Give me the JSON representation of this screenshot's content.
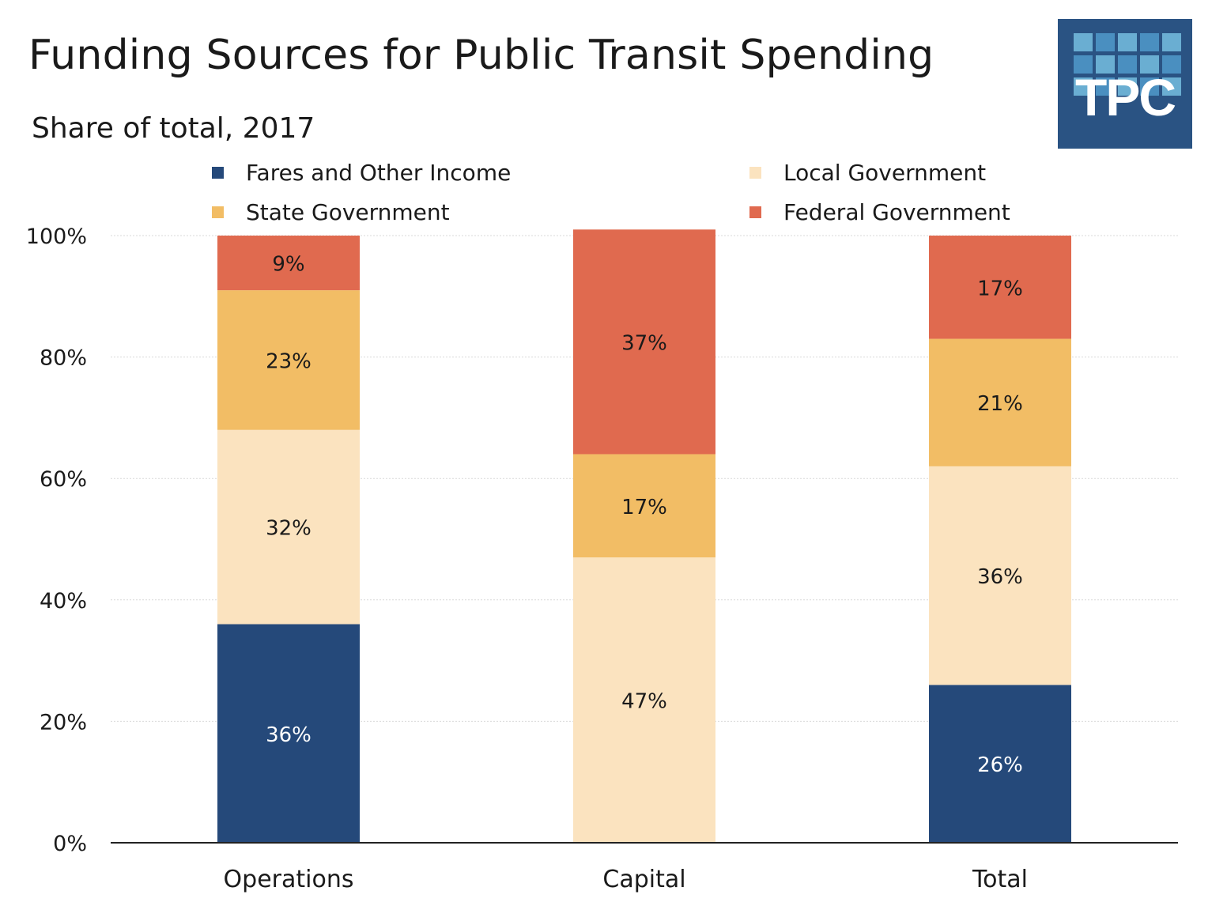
{
  "title": "Funding Sources for Public Transit Spending",
  "subtitle": "Share of total, 2017",
  "logo": {
    "text": "TPC",
    "colors": {
      "background": "#2a5383",
      "tile_light": "#6aaed2",
      "tile_mid": "#4a8fc0"
    }
  },
  "legend": [
    {
      "label": "Fares and Other Income",
      "color": "#25497a"
    },
    {
      "label": "Local Government",
      "color": "#fbe3bf"
    },
    {
      "label": "State Government",
      "color": "#f2bd65"
    },
    {
      "label": "Federal Government",
      "color": "#e06a4f"
    }
  ],
  "chart_data": {
    "type": "bar",
    "stacked": true,
    "categories": [
      "Operations",
      "Capital",
      "Total"
    ],
    "series": [
      {
        "name": "Fares and Other Income",
        "color": "#25497a",
        "values": [
          36,
          0,
          26
        ],
        "labels": [
          "36%",
          "",
          "26%"
        ]
      },
      {
        "name": "Local Government",
        "color": "#fbe3bf",
        "values": [
          32,
          47,
          36
        ],
        "labels": [
          "32%",
          "47%",
          "36%"
        ]
      },
      {
        "name": "State Government",
        "color": "#f2bd65",
        "values": [
          23,
          17,
          21
        ],
        "labels": [
          "23%",
          "17%",
          "21%"
        ]
      },
      {
        "name": "Federal Government",
        "color": "#e06a4f",
        "values": [
          9,
          37,
          17
        ],
        "labels": [
          "9%",
          "37%",
          "17%"
        ]
      }
    ],
    "ylim": [
      0,
      100
    ],
    "yticks": [
      "0%",
      "20%",
      "40%",
      "60%",
      "80%",
      "100%"
    ],
    "grid": true,
    "legend_position": "top"
  }
}
